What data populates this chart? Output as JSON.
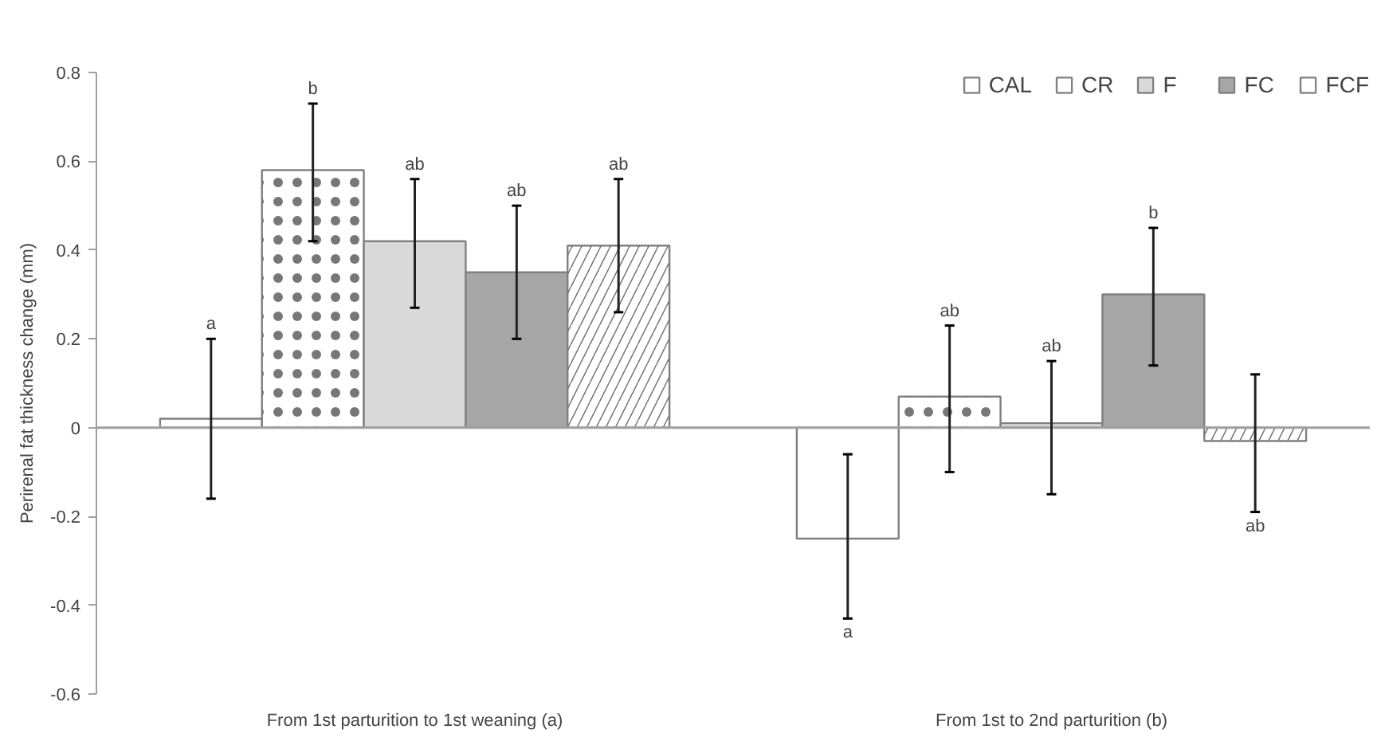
{
  "chart_data": {
    "type": "bar",
    "ylabel": "Perirenal fat thickness change (mm)",
    "categories": [
      "From 1st parturition to 1st weaning (a)",
      "From 1st to 2nd parturition (b)"
    ],
    "series": [
      {
        "name": "CAL",
        "color": "#ffffff",
        "values": [
          0.02,
          -0.25
        ],
        "errors": [
          [
            -0.16,
            0.2
          ],
          [
            -0.43,
            -0.06
          ]
        ]
      },
      {
        "name": "CR",
        "color": "#ffffff",
        "values": [
          0.58,
          0.07
        ],
        "errors": [
          [
            0.42,
            0.73
          ],
          [
            -0.1,
            0.23
          ]
        ]
      },
      {
        "name": "F",
        "color": "#d9d9d9",
        "values": [
          0.42,
          0.01
        ],
        "errors": [
          [
            0.27,
            0.56
          ],
          [
            -0.15,
            0.15
          ]
        ]
      },
      {
        "name": "FC",
        "color": "#a6a6a6",
        "values": [
          0.35,
          0.3
        ],
        "errors": [
          [
            0.2,
            0.5
          ],
          [
            0.14,
            0.45
          ]
        ]
      },
      {
        "name": "FCF",
        "color": "#ffffff",
        "values": [
          0.41,
          -0.03
        ],
        "errors": [
          [
            0.26,
            0.56
          ],
          [
            -0.19,
            0.12
          ]
        ]
      }
    ],
    "annotations": [
      "a",
      "b",
      "ab",
      "ab",
      "ab",
      "a",
      "ab",
      "ab",
      "b",
      "ab"
    ],
    "ylim": [
      -0.6,
      0.8
    ],
    "yticks": [
      -0.6,
      -0.4,
      -0.2,
      0,
      0.2,
      0.4,
      0.6,
      0.8
    ],
    "legend": "top right"
  }
}
